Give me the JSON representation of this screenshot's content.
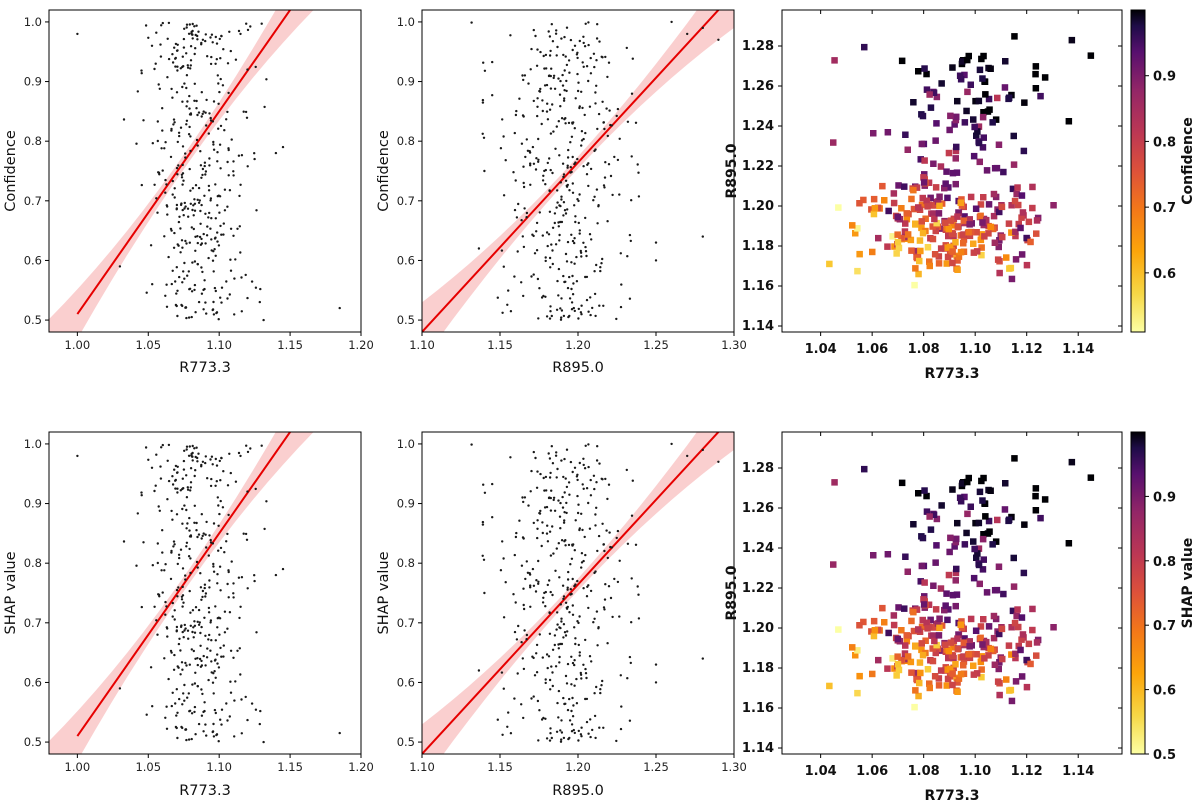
{
  "chart_data": [
    {
      "id": "p1",
      "type": "scatter",
      "title": "",
      "xlabel": "R773.3",
      "ylabel": "Confidence",
      "xlim": [
        0.98,
        1.2
      ],
      "ylim": [
        0.48,
        1.02
      ],
      "xticks": [
        1.0,
        1.05,
        1.1,
        1.15,
        1.2
      ],
      "xtick_labels": [
        "1.00",
        "1.05",
        "1.10",
        "1.15",
        "1.20"
      ],
      "yticks": [
        0.5,
        0.6,
        0.7,
        0.8,
        0.9,
        1.0
      ],
      "ytick_labels": [
        "0.5",
        "0.6",
        "0.7",
        "0.8",
        "0.9",
        "1.0"
      ],
      "regression": {
        "color": "#e60000",
        "band_color": "#f7b5b5",
        "x0": 1.0,
        "y0": 0.51,
        "x1": 1.15,
        "y1": 1.02,
        "band_start": 0.07,
        "band_end": 0.07,
        "band_mid": 0.012
      },
      "points": {
        "n": 420,
        "x_center": 1.087,
        "x_spread": 0.018,
        "y_min": 0.5,
        "y_max": 1.0,
        "seed": 11,
        "outliers": [
          [
            1.0,
            0.98
          ],
          [
            1.185,
            0.52
          ],
          [
            1.14,
            0.78
          ],
          [
            1.145,
            0.79
          ],
          [
            1.12,
            0.92
          ],
          [
            1.115,
            0.98
          ],
          [
            1.125,
            0.77
          ],
          [
            1.03,
            0.59
          ]
        ]
      },
      "grid": false
    },
    {
      "id": "p2",
      "type": "scatter",
      "title": "",
      "xlabel": "R895.0",
      "ylabel": "Confidence",
      "xlim": [
        1.1,
        1.3
      ],
      "ylim": [
        0.48,
        1.02
      ],
      "xticks": [
        1.1,
        1.15,
        1.2,
        1.25,
        1.3
      ],
      "xtick_labels": [
        "1.10",
        "1.15",
        "1.20",
        "1.25",
        "1.30"
      ],
      "yticks": [
        0.5,
        0.6,
        0.7,
        0.8,
        0.9,
        1.0
      ],
      "ytick_labels": [
        "0.5",
        "0.6",
        "0.7",
        "0.8",
        "0.9",
        "1.0"
      ],
      "regression": {
        "color": "#e60000",
        "band_color": "#f7b5b5",
        "x0": 1.1,
        "y0": 0.48,
        "x1": 1.29,
        "y1": 1.02,
        "band_start": 0.05,
        "band_end": 0.05,
        "band_mid": 0.01
      },
      "points": {
        "n": 420,
        "x_center": 1.19,
        "x_spread": 0.02,
        "y_min": 0.5,
        "y_max": 1.0,
        "seed": 23,
        "outliers": [
          [
            1.28,
            0.64
          ],
          [
            1.28,
            0.99
          ],
          [
            1.27,
            0.98
          ],
          [
            1.26,
            1.0
          ],
          [
            1.25,
            0.6
          ],
          [
            1.14,
            0.75
          ],
          [
            1.25,
            0.63
          ],
          [
            1.29,
            0.97
          ]
        ]
      },
      "grid": false
    },
    {
      "id": "p3",
      "type": "scatter",
      "title": "",
      "xlabel": "R773.3",
      "ylabel": "R895.0",
      "xlim": [
        1.025,
        1.157
      ],
      "ylim": [
        1.137,
        1.298
      ],
      "xticks": [
        1.04,
        1.06,
        1.08,
        1.1,
        1.12,
        1.14
      ],
      "xtick_labels": [
        "1.04",
        "1.06",
        "1.08",
        "1.10",
        "1.12",
        "1.14"
      ],
      "yticks": [
        1.14,
        1.16,
        1.18,
        1.2,
        1.22,
        1.24,
        1.26,
        1.28
      ],
      "ytick_labels": [
        "1.14",
        "1.16",
        "1.18",
        "1.20",
        "1.22",
        "1.24",
        "1.26",
        "1.28"
      ],
      "colorbar": {
        "label": "Confidence",
        "cmap": "inferno_r",
        "vmin": 0.51,
        "vmax": 1.0,
        "ticks": [
          0.6,
          0.7,
          0.8,
          0.9
        ],
        "tick_labels": [
          "0.6",
          "0.7",
          "0.8",
          "0.9"
        ]
      },
      "points": {
        "n": 360,
        "seed": 37,
        "marker": "square"
      },
      "grid": false
    },
    {
      "id": "p4",
      "type": "scatter",
      "title": "",
      "xlabel": "R773.3",
      "ylabel": "SHAP value",
      "xlim": [
        0.98,
        1.2
      ],
      "ylim": [
        0.48,
        1.02
      ],
      "xticks": [
        1.0,
        1.05,
        1.1,
        1.15,
        1.2
      ],
      "xtick_labels": [
        "1.00",
        "1.05",
        "1.10",
        "1.15",
        "1.20"
      ],
      "yticks": [
        0.5,
        0.6,
        0.7,
        0.8,
        0.9,
        1.0
      ],
      "ytick_labels": [
        "0.5",
        "0.6",
        "0.7",
        "0.8",
        "0.9",
        "1.0"
      ],
      "regression": {
        "color": "#e60000",
        "band_color": "#f7b5b5",
        "x0": 1.0,
        "y0": 0.51,
        "x1": 1.15,
        "y1": 1.02,
        "band_start": 0.07,
        "band_end": 0.07,
        "band_mid": 0.012
      },
      "points": {
        "n": 420,
        "x_center": 1.087,
        "x_spread": 0.018,
        "y_min": 0.5,
        "y_max": 1.0,
        "seed": 11,
        "outliers": [
          [
            1.0,
            0.98
          ],
          [
            1.185,
            0.515
          ],
          [
            1.14,
            0.78
          ],
          [
            1.145,
            0.79
          ],
          [
            1.12,
            0.92
          ],
          [
            1.115,
            0.98
          ],
          [
            1.125,
            0.77
          ],
          [
            1.03,
            0.59
          ]
        ]
      },
      "grid": false
    },
    {
      "id": "p5",
      "type": "scatter",
      "title": "",
      "xlabel": "R895.0",
      "ylabel": "SHAP value",
      "xlim": [
        1.1,
        1.3
      ],
      "ylim": [
        0.48,
        1.02
      ],
      "xticks": [
        1.1,
        1.15,
        1.2,
        1.25,
        1.3
      ],
      "xtick_labels": [
        "1.10",
        "1.15",
        "1.20",
        "1.25",
        "1.30"
      ],
      "yticks": [
        0.5,
        0.6,
        0.7,
        0.8,
        0.9,
        1.0
      ],
      "ytick_labels": [
        "0.5",
        "0.6",
        "0.7",
        "0.8",
        "0.9",
        "1.0"
      ],
      "regression": {
        "color": "#e60000",
        "band_color": "#f7b5b5",
        "x0": 1.1,
        "y0": 0.48,
        "x1": 1.29,
        "y1": 1.02,
        "band_start": 0.05,
        "band_end": 0.05,
        "band_mid": 0.01
      },
      "points": {
        "n": 420,
        "x_center": 1.19,
        "x_spread": 0.02,
        "y_min": 0.5,
        "y_max": 1.0,
        "seed": 23,
        "outliers": [
          [
            1.28,
            0.64
          ],
          [
            1.28,
            0.99
          ],
          [
            1.27,
            0.98
          ],
          [
            1.26,
            1.0
          ],
          [
            1.25,
            0.6
          ],
          [
            1.14,
            0.75
          ],
          [
            1.25,
            0.63
          ],
          [
            1.29,
            0.97
          ]
        ]
      },
      "grid": false
    },
    {
      "id": "p6",
      "type": "scatter",
      "title": "",
      "xlabel": "R773.3",
      "ylabel": "R895.0",
      "xlim": [
        1.025,
        1.157
      ],
      "ylim": [
        1.137,
        1.298
      ],
      "xticks": [
        1.04,
        1.06,
        1.08,
        1.1,
        1.12,
        1.14
      ],
      "xtick_labels": [
        "1.04",
        "1.06",
        "1.08",
        "1.10",
        "1.12",
        "1.14"
      ],
      "yticks": [
        1.14,
        1.16,
        1.18,
        1.2,
        1.22,
        1.24,
        1.26,
        1.28
      ],
      "ytick_labels": [
        "1.14",
        "1.16",
        "1.18",
        "1.20",
        "1.22",
        "1.24",
        "1.26",
        "1.28"
      ],
      "colorbar": {
        "label": "SHAP value",
        "cmap": "inferno_r",
        "vmin": 0.5,
        "vmax": 1.0,
        "ticks": [
          0.5,
          0.6,
          0.7,
          0.8,
          0.9
        ],
        "tick_labels": [
          "0.5",
          "0.6",
          "0.7",
          "0.8",
          "0.9"
        ]
      },
      "points": {
        "n": 360,
        "seed": 37,
        "marker": "square"
      },
      "grid": false
    }
  ]
}
